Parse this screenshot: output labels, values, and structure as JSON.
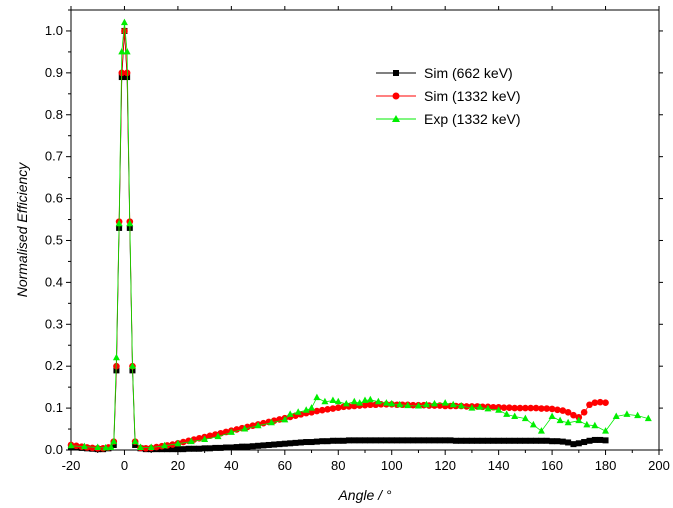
{
  "chart_data": {
    "type": "scatter",
    "title": "",
    "xlabel": "Angle / °",
    "ylabel": "Normalised Efficiency",
    "xlim": [
      -20,
      200
    ],
    "ylim": [
      0,
      1.05
    ],
    "xticks": [
      -20,
      0,
      20,
      40,
      60,
      80,
      100,
      120,
      140,
      160,
      180,
      200
    ],
    "yticks": [
      0.0,
      0.1,
      0.2,
      0.3,
      0.4,
      0.5,
      0.6,
      0.7,
      0.8,
      0.9,
      1.0
    ],
    "ytick_labels": [
      "0.0",
      "0.1",
      "0.2",
      "0.3",
      "0.4",
      "0.5",
      "0.6",
      "0.7",
      "0.8",
      "0.9",
      "1.0"
    ],
    "grid": false,
    "legend_position": "top-right",
    "series": [
      {
        "name": "Sim (662 keV)",
        "color": "#000000",
        "marker": "square",
        "x": [
          -20,
          -18,
          -16,
          -14,
          -12,
          -10,
          -8,
          -6,
          -4,
          -3,
          -2,
          -1,
          0,
          1,
          2,
          3,
          4,
          6,
          8,
          10,
          12,
          14,
          16,
          18,
          20,
          22,
          24,
          26,
          28,
          30,
          32,
          34,
          36,
          38,
          40,
          42,
          44,
          46,
          48,
          50,
          52,
          54,
          56,
          58,
          60,
          62,
          64,
          66,
          68,
          70,
          72,
          74,
          76,
          78,
          80,
          82,
          84,
          86,
          88,
          90,
          92,
          94,
          96,
          98,
          100,
          102,
          104,
          106,
          108,
          110,
          112,
          114,
          116,
          118,
          120,
          122,
          124,
          126,
          128,
          130,
          132,
          134,
          136,
          138,
          140,
          142,
          144,
          146,
          148,
          150,
          152,
          154,
          156,
          158,
          160,
          162,
          164,
          166,
          168,
          170,
          172,
          174,
          176,
          178,
          180
        ],
        "y": [
          0.008,
          0.006,
          0.005,
          0.004,
          0.003,
          0.002,
          0.002,
          0.004,
          0.012,
          0.19,
          0.53,
          0.89,
          1.0,
          0.89,
          0.53,
          0.19,
          0.012,
          0.004,
          0.002,
          0.002,
          0.002,
          0.002,
          0.002,
          0.002,
          0.002,
          0.002,
          0.003,
          0.003,
          0.003,
          0.004,
          0.004,
          0.005,
          0.005,
          0.006,
          0.006,
          0.007,
          0.008,
          0.008,
          0.009,
          0.01,
          0.011,
          0.012,
          0.013,
          0.014,
          0.015,
          0.016,
          0.017,
          0.018,
          0.019,
          0.019,
          0.02,
          0.021,
          0.021,
          0.022,
          0.022,
          0.022,
          0.023,
          0.023,
          0.023,
          0.023,
          0.023,
          0.023,
          0.023,
          0.023,
          0.023,
          0.023,
          0.023,
          0.023,
          0.023,
          0.023,
          0.023,
          0.023,
          0.023,
          0.023,
          0.023,
          0.023,
          0.022,
          0.022,
          0.022,
          0.022,
          0.022,
          0.022,
          0.022,
          0.022,
          0.022,
          0.022,
          0.022,
          0.022,
          0.022,
          0.022,
          0.022,
          0.022,
          0.022,
          0.022,
          0.021,
          0.021,
          0.02,
          0.018,
          0.014,
          0.016,
          0.019,
          0.022,
          0.024,
          0.024,
          0.023
        ]
      },
      {
        "name": "Sim (1332 keV)",
        "color": "#ff0000",
        "marker": "circle",
        "x": [
          -20,
          -18,
          -16,
          -14,
          -12,
          -10,
          -8,
          -6,
          -4,
          -3,
          -2,
          -1,
          0,
          1,
          2,
          3,
          4,
          6,
          8,
          10,
          12,
          14,
          16,
          18,
          20,
          22,
          24,
          26,
          28,
          30,
          32,
          34,
          36,
          38,
          40,
          42,
          44,
          46,
          48,
          50,
          52,
          54,
          56,
          58,
          60,
          62,
          64,
          66,
          68,
          70,
          72,
          74,
          76,
          78,
          80,
          82,
          84,
          86,
          88,
          90,
          92,
          94,
          96,
          98,
          100,
          102,
          104,
          106,
          108,
          110,
          112,
          114,
          116,
          118,
          120,
          122,
          124,
          126,
          128,
          130,
          132,
          134,
          136,
          138,
          140,
          142,
          144,
          146,
          148,
          150,
          152,
          154,
          156,
          158,
          160,
          162,
          164,
          166,
          168,
          170,
          172,
          174,
          176,
          178,
          180
        ],
        "y": [
          0.012,
          0.01,
          0.008,
          0.006,
          0.005,
          0.004,
          0.004,
          0.006,
          0.02,
          0.2,
          0.545,
          0.9,
          1.0,
          0.9,
          0.545,
          0.2,
          0.02,
          0.005,
          0.004,
          0.005,
          0.007,
          0.009,
          0.011,
          0.013,
          0.016,
          0.019,
          0.022,
          0.025,
          0.028,
          0.031,
          0.034,
          0.037,
          0.04,
          0.043,
          0.046,
          0.049,
          0.052,
          0.055,
          0.058,
          0.061,
          0.064,
          0.067,
          0.07,
          0.073,
          0.076,
          0.079,
          0.082,
          0.085,
          0.088,
          0.09,
          0.093,
          0.095,
          0.097,
          0.099,
          0.101,
          0.103,
          0.104,
          0.105,
          0.106,
          0.107,
          0.108,
          0.108,
          0.109,
          0.109,
          0.109,
          0.108,
          0.108,
          0.108,
          0.107,
          0.107,
          0.107,
          0.106,
          0.106,
          0.106,
          0.105,
          0.105,
          0.105,
          0.105,
          0.104,
          0.104,
          0.104,
          0.103,
          0.103,
          0.102,
          0.102,
          0.101,
          0.101,
          0.1,
          0.1,
          0.1,
          0.1,
          0.1,
          0.099,
          0.099,
          0.098,
          0.096,
          0.094,
          0.09,
          0.083,
          0.078,
          0.09,
          0.108,
          0.113,
          0.114,
          0.113
        ]
      },
      {
        "name": "Exp (1332 keV)",
        "color": "#00ee00",
        "marker": "triangle",
        "x": [
          -20,
          -15,
          -10,
          -7,
          -5,
          -4,
          -3,
          -2,
          -1,
          0,
          1,
          2,
          3,
          4,
          6,
          10,
          15,
          20,
          25,
          30,
          35,
          40,
          45,
          50,
          55,
          60,
          62,
          65,
          68,
          70,
          72,
          75,
          78,
          80,
          83,
          86,
          88,
          90,
          92,
          95,
          98,
          100,
          103,
          106,
          110,
          113,
          116,
          120,
          123,
          126,
          130,
          133,
          136,
          140,
          143,
          146,
          150,
          153,
          156,
          160,
          163,
          166,
          170,
          173,
          176,
          180,
          184,
          188,
          192,
          196
        ],
        "y": [
          0.01,
          0.008,
          0.006,
          0.005,
          0.006,
          0.02,
          0.22,
          0.54,
          0.95,
          1.02,
          0.95,
          0.54,
          0.2,
          0.02,
          0.006,
          0.006,
          0.01,
          0.015,
          0.02,
          0.025,
          0.032,
          0.042,
          0.05,
          0.058,
          0.065,
          0.072,
          0.085,
          0.09,
          0.095,
          0.1,
          0.125,
          0.115,
          0.118,
          0.115,
          0.11,
          0.115,
          0.112,
          0.118,
          0.12,
          0.115,
          0.112,
          0.11,
          0.108,
          0.106,
          0.105,
          0.108,
          0.11,
          0.112,
          0.108,
          0.105,
          0.1,
          0.102,
          0.098,
          0.095,
          0.085,
          0.08,
          0.075,
          0.06,
          0.045,
          0.08,
          0.07,
          0.065,
          0.07,
          0.06,
          0.058,
          0.045,
          0.08,
          0.085,
          0.082,
          0.075
        ]
      }
    ]
  }
}
